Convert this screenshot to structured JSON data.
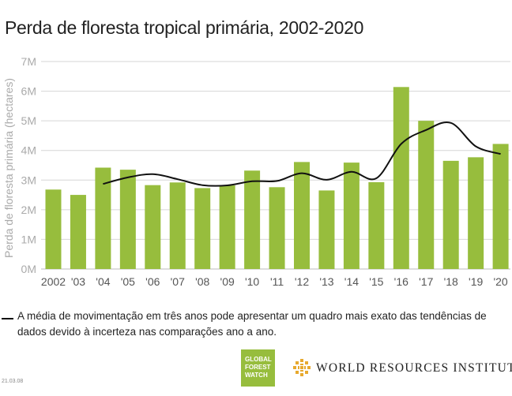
{
  "title": "Perda de floresta tropical primária, 2002-2020",
  "chart_data": {
    "type": "bar",
    "ylabel": "Perda de floresta primária (hectares)",
    "xlabel": "",
    "ylim": [
      0,
      7000000
    ],
    "y_ticks": [
      {
        "value": 0,
        "label": "0M"
      },
      {
        "value": 1000000,
        "label": "1M"
      },
      {
        "value": 2000000,
        "label": "2M"
      },
      {
        "value": 3000000,
        "label": "3M"
      },
      {
        "value": 4000000,
        "label": "4M"
      },
      {
        "value": 5000000,
        "label": "5M"
      },
      {
        "value": 6000000,
        "label": "6M"
      },
      {
        "value": 7000000,
        "label": "7M"
      }
    ],
    "categories": [
      "2002",
      "'03",
      "'04",
      "'05",
      "'06",
      "'07",
      "'08",
      "'09",
      "'10",
      "'11",
      "'12",
      "'13",
      "'14",
      "'15",
      "'16",
      "'17",
      "'18",
      "'19",
      "'20"
    ],
    "values": [
      2680000,
      2500000,
      3420000,
      3350000,
      2830000,
      2920000,
      2730000,
      2820000,
      3320000,
      2760000,
      3610000,
      2650000,
      3590000,
      2930000,
      6140000,
      5000000,
      3650000,
      3770000,
      4220000
    ],
    "moving_average": [
      null,
      null,
      2870000,
      3090000,
      3200000,
      3030000,
      2830000,
      2820000,
      2960000,
      2970000,
      3230000,
      3010000,
      3280000,
      3060000,
      4220000,
      4690000,
      4930000,
      4140000,
      3880000
    ],
    "bar_color": "#97bd3d",
    "line_color": "#111111",
    "grid": true
  },
  "legend": {
    "text": "A média de movimentação em três anos pode apresentar um quadro mais exato das tendências de dados devido à incerteza nas comparações ano a ano."
  },
  "footer": {
    "gfw_logo": [
      "GLOBAL",
      "FOREST",
      "WATCH"
    ],
    "wri_name": "WORLD RESOURCES INSTITUTE",
    "code": "21.03.08"
  }
}
